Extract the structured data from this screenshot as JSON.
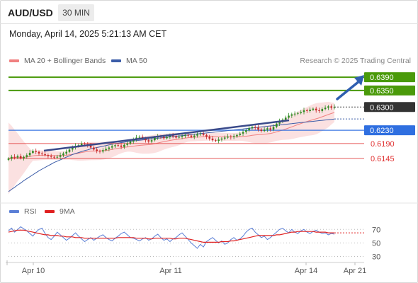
{
  "header": {
    "symbol": "AUD/USD",
    "timeframe": "30 MIN",
    "timestamp": "Monday, April 14, 2025 5:21:13 AM CET"
  },
  "legend": {
    "bollinger_label": "MA 20 + Bollinger Bands",
    "bollinger_color": "#f08080",
    "ma50_label": "MA 50",
    "ma50_color": "#3b5ca8",
    "credit": "Research © 2025 Trading Central"
  },
  "indicator_legend": {
    "rsi_label": "RSI",
    "rsi_color": "#5b7fd6",
    "ma9_label": "9MA",
    "ma9_color": "#e02020"
  },
  "chart_data": {
    "type": "candlestick",
    "x_ticks": [
      "Apr 10",
      "Apr 11",
      "Apr 14",
      "Apr 21"
    ],
    "y_range": [
      0.6015,
      0.642
    ],
    "current_price": "0.6300",
    "levels": [
      {
        "value": "0.6390",
        "kind": "resistance",
        "color": "#4a9a0a"
      },
      {
        "value": "0.6350",
        "kind": "resistance",
        "color": "#4a9a0a"
      },
      {
        "value": "0.6230",
        "kind": "pivot",
        "color": "#2f6fe0"
      },
      {
        "value": "0.6190",
        "kind": "support",
        "color": "#e03030"
      },
      {
        "value": "0.6145",
        "kind": "support",
        "color": "#e03030"
      }
    ],
    "close_series": [
      0.6145,
      0.615,
      0.6148,
      0.6152,
      0.6146,
      0.615,
      0.6155,
      0.6162,
      0.6168,
      0.6165,
      0.616,
      0.6158,
      0.6155,
      0.6152,
      0.615,
      0.6148,
      0.615,
      0.6155,
      0.616,
      0.6165,
      0.6172,
      0.6178,
      0.6183,
      0.6185,
      0.619,
      0.6188,
      0.6184,
      0.6178,
      0.6172,
      0.6168,
      0.6166,
      0.617,
      0.6174,
      0.6178,
      0.6182,
      0.6185,
      0.6184,
      0.618,
      0.6186,
      0.619,
      0.6196,
      0.6202,
      0.6208,
      0.621,
      0.6206,
      0.62,
      0.6196,
      0.62,
      0.6208,
      0.6212,
      0.621,
      0.6206,
      0.621,
      0.6215,
      0.6212,
      0.6208,
      0.621,
      0.6213,
      0.6216,
      0.6214,
      0.621,
      0.6214,
      0.6218,
      0.622,
      0.6216,
      0.621,
      0.6205,
      0.62,
      0.6198,
      0.6202,
      0.6205,
      0.6208,
      0.6211,
      0.6209,
      0.6212,
      0.6216,
      0.622,
      0.6225,
      0.623,
      0.6236,
      0.624,
      0.6238,
      0.6232,
      0.6228,
      0.6232,
      0.6236,
      0.6232,
      0.624,
      0.625,
      0.6258,
      0.6262,
      0.6268,
      0.6274,
      0.6278,
      0.628,
      0.6282,
      0.6285,
      0.629,
      0.6288,
      0.6292,
      0.6295,
      0.629,
      0.6288,
      0.6294,
      0.6298,
      0.6302,
      0.6298,
      0.63
    ],
    "ma50_series": [
      0.6045,
      0.6052,
      0.6058,
      0.6065,
      0.6071,
      0.6078,
      0.6084,
      0.609,
      0.6096,
      0.6102,
      0.6108,
      0.6113,
      0.6118,
      0.6123,
      0.6128,
      0.6133,
      0.6137,
      0.6141,
      0.6145,
      0.6149,
      0.6153,
      0.6157,
      0.616,
      0.6163,
      0.6166,
      0.6169,
      0.6171,
      0.6174,
      0.6176,
      0.6178,
      0.618,
      0.6182,
      0.6184,
      0.6186,
      0.6188,
      0.619,
      0.6191,
      0.6193,
      0.6194,
      0.6196,
      0.6197,
      0.6198,
      0.6199,
      0.62,
      0.6201,
      0.6202,
      0.6203,
      0.6204,
      0.6205,
      0.6206,
      0.6207,
      0.6208,
      0.6209,
      0.621,
      0.6211,
      0.6212,
      0.6213,
      0.6214,
      0.6215,
      0.6216,
      0.6217,
      0.6218,
      0.6219,
      0.622,
      0.6221,
      0.6222,
      0.6223,
      0.6224,
      0.6225,
      0.6226,
      0.6227,
      0.6228,
      0.6229,
      0.623,
      0.6231,
      0.6232,
      0.6233,
      0.6234,
      0.6235,
      0.6236,
      0.6237,
      0.6238,
      0.6239,
      0.624,
      0.6241,
      0.6242,
      0.6243,
      0.6244,
      0.6245,
      0.6246,
      0.6247,
      0.6248,
      0.6249,
      0.625,
      0.6251,
      0.6252,
      0.6253,
      0.6254,
      0.6255,
      0.6256,
      0.6257,
      0.6258,
      0.6259,
      0.626,
      0.6261,
      0.6262,
      0.6263,
      0.6264
    ],
    "rsi": {
      "y_ticks": [
        "70",
        "50",
        "30"
      ],
      "y_range": [
        20,
        85
      ],
      "rsi_series": [
        68,
        72,
        66,
        70,
        74,
        71,
        68,
        64,
        60,
        66,
        70,
        72,
        64,
        58,
        55,
        60,
        66,
        62,
        58,
        54,
        57,
        61,
        65,
        60,
        56,
        52,
        55,
        58,
        54,
        57,
        60,
        62,
        58,
        55,
        53,
        57,
        60,
        64,
        66,
        62,
        58,
        57,
        55,
        53,
        56,
        58,
        54,
        56,
        60,
        63,
        58,
        54,
        56,
        52,
        56,
        58,
        62,
        65,
        60,
        55,
        50,
        46,
        42,
        48,
        44,
        52,
        55,
        58,
        54,
        50,
        53,
        48,
        50,
        55,
        58,
        54,
        56,
        60,
        66,
        70,
        72,
        66,
        62,
        58,
        60,
        55,
        58,
        62,
        66,
        70,
        72,
        68,
        65,
        70,
        66,
        64,
        68,
        70,
        66,
        64,
        67,
        69,
        66,
        64,
        65,
        62,
        64,
        63
      ],
      "ma9_series": [
        66,
        67,
        68,
        69,
        69,
        69,
        68,
        67,
        66,
        65,
        64,
        63,
        62,
        62,
        61,
        61,
        61,
        60,
        60,
        59,
        59,
        59,
        58,
        58,
        58,
        57,
        57,
        57,
        57,
        57,
        57,
        57,
        57,
        57,
        57,
        57,
        58,
        58,
        58,
        58,
        58,
        58,
        57,
        57,
        57,
        57,
        56,
        56,
        57,
        57,
        57,
        57,
        57,
        57,
        56,
        56,
        57,
        57,
        57,
        56,
        55,
        54,
        53,
        52,
        51,
        51,
        51,
        51,
        51,
        51,
        52,
        52,
        52,
        53,
        53,
        54,
        55,
        56,
        57,
        58,
        59,
        60,
        61,
        61,
        61,
        61,
        61,
        61,
        62,
        62,
        63,
        64,
        65,
        66,
        66,
        67,
        67,
        67,
        67,
        67,
        67,
        66,
        66,
        66,
        66,
        65,
        65,
        65
      ]
    }
  }
}
